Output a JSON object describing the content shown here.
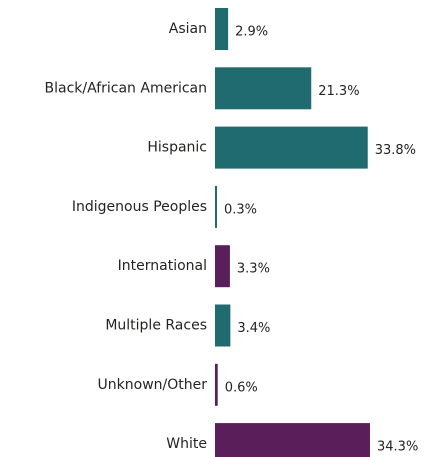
{
  "chart_data": {
    "type": "bar",
    "orientation": "horizontal",
    "categories": [
      "Asian",
      "Black/African American",
      "Hispanic",
      "Indigenous Peoples",
      "International",
      "Multiple Races",
      "Unknown/Other",
      "White"
    ],
    "values": [
      2.9,
      21.3,
      33.8,
      0.3,
      3.3,
      3.4,
      0.6,
      34.3
    ],
    "value_labels": [
      "2.9%",
      "21.3%",
      "33.8%",
      "0.3%",
      "3.3%",
      "3.4%",
      "0.6%",
      "34.3%"
    ],
    "bar_colors": [
      "#1f6b6f",
      "#1f6b6f",
      "#1f6b6f",
      "#1f6b6f",
      "#5a1f5a",
      "#1f6b6f",
      "#5a1f5a",
      "#5a1f5a"
    ],
    "title": "",
    "xlabel": "",
    "ylabel": "",
    "xlim": [
      0,
      34.3
    ],
    "grid": false,
    "legend": "none"
  }
}
